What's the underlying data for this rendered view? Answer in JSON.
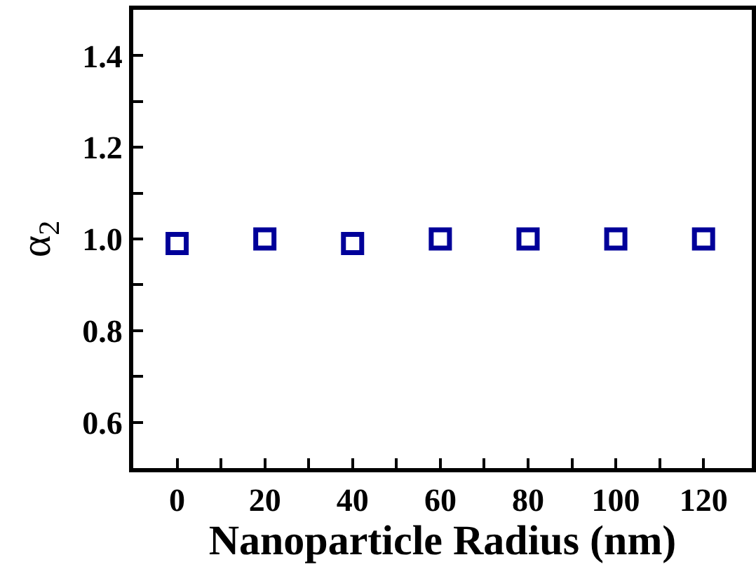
{
  "chart_data": {
    "type": "scatter",
    "xlabel": "Nanoparticle Radius (nm)",
    "ylabel": "α$_{2}$",
    "x": [
      0,
      20,
      40,
      60,
      80,
      100,
      120
    ],
    "series": [
      {
        "color": "#000099",
        "values": [
          0.99,
          1.0,
          0.99,
          1.0,
          1.0,
          1.0,
          1.0
        ]
      }
    ],
    "marker": "square",
    "xlim": [
      -10,
      131
    ],
    "xticks": [
      0,
      {
        "value": 10,
        "label": null
      },
      20,
      {
        "value": 30,
        "label": null
      },
      40,
      {
        "value": 50,
        "label": null
      },
      60,
      {
        "value": 70,
        "label": null
      },
      80,
      {
        "value": 90,
        "label": null
      },
      100,
      {
        "value": 110,
        "label": null
      },
      120
    ],
    "ylim": [
      0.5,
      1.5
    ],
    "yticks": [
      0.6,
      {
        "value": 0.7,
        "label": null
      },
      0.8,
      {
        "value": 0.9,
        "label": null
      },
      {
        "value": 1.0,
        "label": "1.0"
      },
      {
        "value": 1.1,
        "label": null
      },
      1.2,
      {
        "value": 1.3,
        "label": null
      },
      1.4
    ]
  }
}
